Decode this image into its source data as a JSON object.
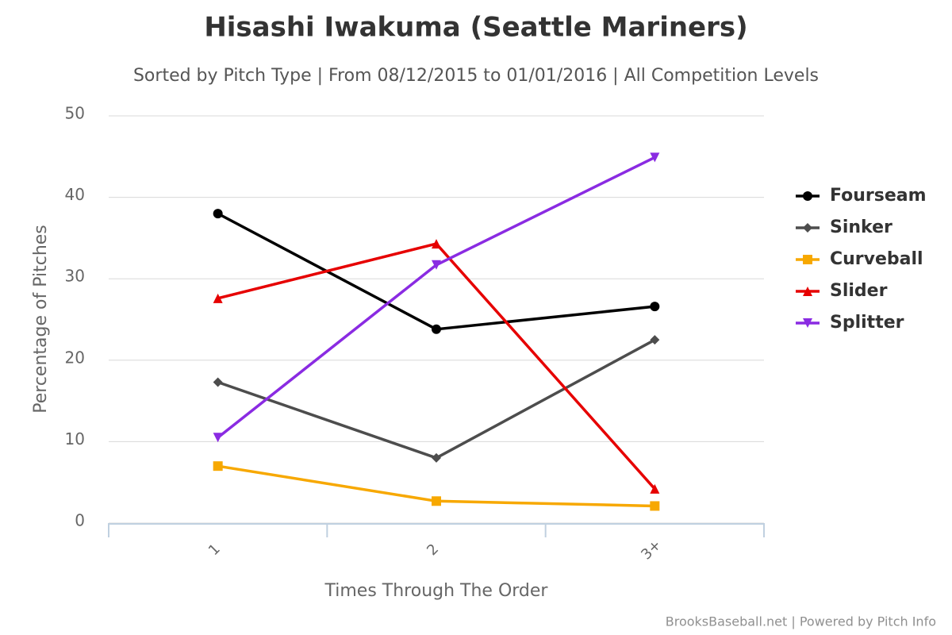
{
  "chart_data": {
    "type": "line",
    "title": "Hisashi Iwakuma (Seattle Mariners)",
    "subtitle": "Sorted by Pitch Type | From 08/12/2015 to 01/01/2016 | All Competition Levels",
    "x_label": "Times Through The Order",
    "y_label": "Percentage of Pitches",
    "credits": "BrooksBaseball.net | Powered by Pitch Info",
    "categories": [
      "1",
      "2",
      "3+"
    ],
    "series": [
      {
        "name": "Fourseam",
        "color": "#000000",
        "marker": "circle",
        "values": [
          38.0,
          23.8,
          26.6
        ]
      },
      {
        "name": "Sinker",
        "color": "#4d4d4d",
        "marker": "diamond",
        "values": [
          17.3,
          8.0,
          22.5
        ]
      },
      {
        "name": "Curveball",
        "color": "#f7a800",
        "marker": "square",
        "values": [
          7.0,
          2.7,
          2.1
        ]
      },
      {
        "name": "Slider",
        "color": "#e60000",
        "marker": "triangle",
        "values": [
          27.6,
          34.3,
          4.2
        ]
      },
      {
        "name": "Splitter",
        "color": "#8a2be2",
        "marker": "triangle-down",
        "values": [
          10.5,
          31.7,
          44.9
        ]
      }
    ],
    "ylim": [
      0,
      50
    ],
    "yticks": [
      0,
      10,
      20,
      30,
      40,
      50
    ],
    "grid": true,
    "legend": "right"
  }
}
